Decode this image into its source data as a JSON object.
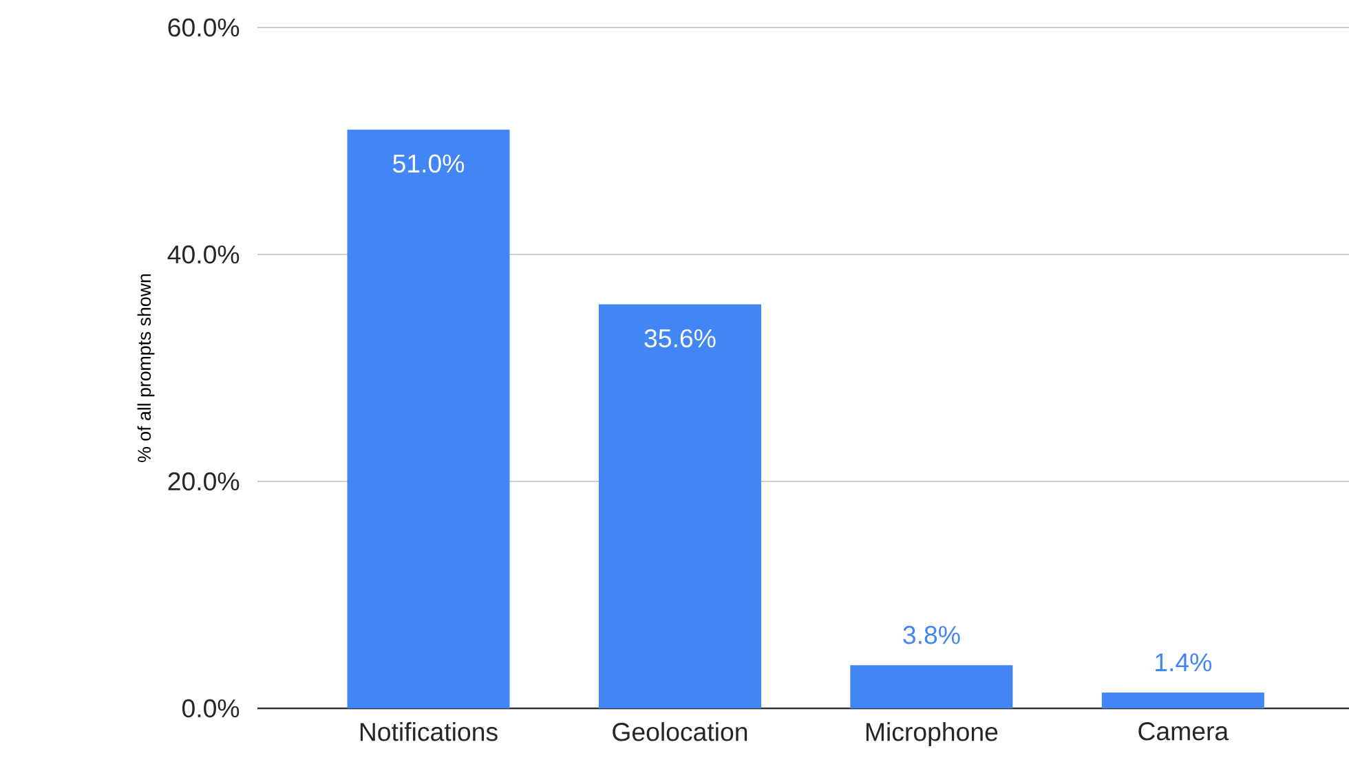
{
  "chart_data": {
    "type": "bar",
    "ylabel": "% of all prompts shown",
    "categories": [
      "Notifications",
      "Geolocation",
      "Microphone",
      "Camera"
    ],
    "values": [
      51.0,
      35.6,
      3.8,
      1.4
    ],
    "value_labels": [
      "51.0%",
      "35.6%",
      "3.8%",
      "1.4%"
    ],
    "color": "#4285f4",
    "ylim": [
      0,
      60
    ],
    "yticks": [
      {
        "value": 0,
        "label": "0.0%"
      },
      {
        "value": 20,
        "label": "20.0%"
      },
      {
        "value": 40,
        "label": "40.0%"
      },
      {
        "value": 60,
        "label": "60.0%"
      }
    ],
    "grid": "y"
  }
}
